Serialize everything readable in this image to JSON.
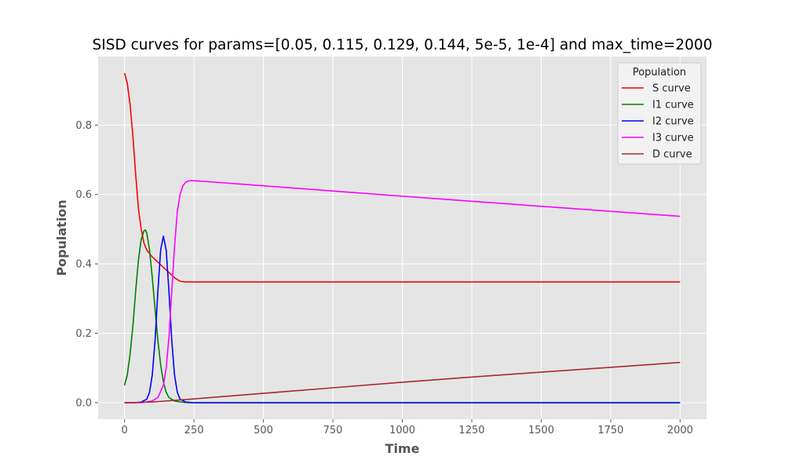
{
  "chart_data": {
    "type": "line",
    "title": "SISD curves for params=[0.05, 0.115, 0.129, 0.144, 5e-5, 1e-4] and max_time=2000",
    "xlabel": "Time",
    "ylabel": "Population",
    "xlim": [
      -95,
      2095
    ],
    "ylim": [
      -0.0475,
      0.9975
    ],
    "xticks": [
      0,
      250,
      500,
      750,
      1000,
      1250,
      1500,
      1750,
      2000
    ],
    "yticks": [
      0.0,
      0.2,
      0.4,
      0.6,
      0.8
    ],
    "ytick_labels": [
      "0.0",
      "0.2",
      "0.4",
      "0.6",
      "0.8"
    ],
    "grid": true,
    "legend": {
      "title": "Population",
      "placement": "top-right"
    },
    "series": [
      {
        "name": "S curve",
        "color": "#ff0000",
        "x": [
          0,
          10,
          20,
          30,
          40,
          50,
          60,
          70,
          80,
          90,
          100,
          120,
          140,
          160,
          180,
          200,
          220,
          240,
          260,
          300,
          500,
          1000,
          1500,
          2000
        ],
        "y": [
          0.95,
          0.92,
          0.86,
          0.77,
          0.66,
          0.56,
          0.5,
          0.46,
          0.44,
          0.43,
          0.42,
          0.405,
          0.39,
          0.375,
          0.36,
          0.35,
          0.348,
          0.348,
          0.348,
          0.348,
          0.348,
          0.348,
          0.348,
          0.348
        ]
      },
      {
        "name": "I1 curve",
        "color": "#008000",
        "x": [
          0,
          10,
          20,
          30,
          40,
          50,
          60,
          70,
          75,
          80,
          90,
          100,
          110,
          120,
          130,
          140,
          150,
          160,
          180,
          200,
          230,
          300,
          500,
          1000,
          1500,
          2000
        ],
        "y": [
          0.05,
          0.08,
          0.14,
          0.22,
          0.32,
          0.41,
          0.47,
          0.495,
          0.498,
          0.49,
          0.44,
          0.36,
          0.27,
          0.18,
          0.11,
          0.06,
          0.03,
          0.015,
          0.005,
          0.002,
          0.0,
          0.0,
          0.0,
          0.0,
          0.0,
          0.0
        ]
      },
      {
        "name": "I2 curve",
        "color": "#0000ff",
        "x": [
          0,
          40,
          60,
          80,
          90,
          100,
          110,
          120,
          130,
          140,
          150,
          160,
          170,
          180,
          190,
          200,
          220,
          250,
          500,
          1000,
          1500,
          2000
        ],
        "y": [
          0.0,
          0.0,
          0.002,
          0.01,
          0.03,
          0.08,
          0.18,
          0.32,
          0.44,
          0.48,
          0.44,
          0.32,
          0.18,
          0.08,
          0.03,
          0.01,
          0.002,
          0.0,
          0.0,
          0.0,
          0.0,
          0.0
        ]
      },
      {
        "name": "I3 curve",
        "color": "#ff00ff",
        "x": [
          0,
          60,
          100,
          120,
          140,
          150,
          160,
          170,
          180,
          190,
          200,
          210,
          220,
          230,
          240,
          300,
          500,
          1000,
          1500,
          2000
        ],
        "y": [
          0.0,
          0.0,
          0.005,
          0.015,
          0.05,
          0.1,
          0.19,
          0.32,
          0.45,
          0.55,
          0.6,
          0.625,
          0.635,
          0.639,
          0.64,
          0.637,
          0.625,
          0.595,
          0.566,
          0.537
        ]
      },
      {
        "name": "D curve",
        "color": "#a52a2a",
        "x": [
          0,
          100,
          250,
          500,
          750,
          1000,
          1250,
          1500,
          1750,
          2000
        ],
        "y": [
          0.0,
          0.002,
          0.011,
          0.027,
          0.043,
          0.059,
          0.074,
          0.088,
          0.102,
          0.116
        ]
      }
    ]
  }
}
